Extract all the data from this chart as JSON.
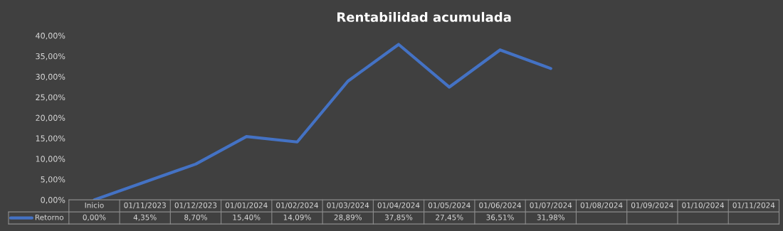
{
  "chart_data": {
    "type": "line",
    "title": "Rentabilidad acumulada",
    "categories": [
      "Inicio",
      "01/11/2023",
      "01/12/2023",
      "01/01/2024",
      "01/02/2024",
      "01/03/2024",
      "01/04/2024",
      "01/05/2024",
      "01/06/2024",
      "01/07/2024",
      "01/08/2024",
      "01/09/2024",
      "01/10/2024",
      "01/11/2024"
    ],
    "series": [
      {
        "name": "Retorno",
        "color": "#4472c4",
        "values": [
          0,
          4.35,
          8.7,
          15.4,
          14.09,
          28.89,
          37.85,
          27.45,
          36.51,
          31.98,
          null,
          null,
          null,
          null
        ],
        "value_labels": [
          "0,00%",
          "4,35%",
          "8,70%",
          "15,40%",
          "14,09%",
          "28,89%",
          "37,85%",
          "27,45%",
          "36,51%",
          "31,98%",
          null,
          null,
          null,
          null
        ]
      }
    ],
    "ylim": [
      0,
      40
    ],
    "yticks": [
      {
        "value": 0,
        "label": "0,00%"
      },
      {
        "value": 5,
        "label": "5,00%"
      },
      {
        "value": 10,
        "label": "10,00%"
      },
      {
        "value": 15,
        "label": "15,00%"
      },
      {
        "value": 20,
        "label": "20,00%"
      },
      {
        "value": 25,
        "label": "25,00%"
      },
      {
        "value": 30,
        "label": "30,00%"
      },
      {
        "value": 35,
        "label": "35,00%"
      },
      {
        "value": 40,
        "label": "40,00%"
      }
    ],
    "grid": false,
    "legend": "bottom",
    "marker": "none",
    "line_style": "solid"
  }
}
